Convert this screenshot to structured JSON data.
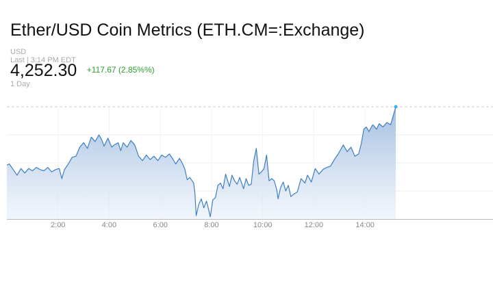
{
  "header": {
    "title": "Ether/USD Coin Metrics (ETH.CM=:Exchange)",
    "currency": "USD",
    "last_time": "Last | 3:14 PM EDT",
    "price": "4,252.30",
    "change": "+117.67 (2.85%%)",
    "range": "1 Day"
  },
  "chart_data": {
    "type": "area",
    "xlabel": "",
    "ylabel": "",
    "x_ticks": [
      {
        "hour": 2,
        "label": "2:00"
      },
      {
        "hour": 4,
        "label": "4:00"
      },
      {
        "hour": 6,
        "label": "6:00"
      },
      {
        "hour": 8,
        "label": "8:00"
      },
      {
        "hour": 10,
        "label": "10:00"
      },
      {
        "hour": 12,
        "label": "12:00"
      },
      {
        "hour": 14,
        "label": "14:00"
      }
    ],
    "xlim": [
      0,
      19
    ],
    "ylim": [
      0,
      100
    ],
    "previous_close_level": 100,
    "series": [
      {
        "points": [
          [
            0.0,
            48
          ],
          [
            0.1,
            49
          ],
          [
            0.25,
            44
          ],
          [
            0.4,
            39
          ],
          [
            0.55,
            45
          ],
          [
            0.7,
            41
          ],
          [
            0.85,
            45
          ],
          [
            1.0,
            43
          ],
          [
            1.15,
            46
          ],
          [
            1.3,
            44
          ],
          [
            1.45,
            43
          ],
          [
            1.6,
            46
          ],
          [
            1.75,
            42
          ],
          [
            1.9,
            44
          ],
          [
            2.05,
            45
          ],
          [
            2.15,
            36
          ],
          [
            2.25,
            44
          ],
          [
            2.4,
            49
          ],
          [
            2.55,
            55
          ],
          [
            2.7,
            56
          ],
          [
            2.85,
            64
          ],
          [
            3.0,
            68
          ],
          [
            3.15,
            63
          ],
          [
            3.3,
            73
          ],
          [
            3.45,
            69
          ],
          [
            3.6,
            75
          ],
          [
            3.7,
            71
          ],
          [
            3.8,
            65
          ],
          [
            3.95,
            72
          ],
          [
            4.1,
            64
          ],
          [
            4.2,
            66
          ],
          [
            4.35,
            68
          ],
          [
            4.45,
            61
          ],
          [
            4.55,
            68
          ],
          [
            4.7,
            64
          ],
          [
            4.85,
            70
          ],
          [
            5.0,
            66
          ],
          [
            5.15,
            56
          ],
          [
            5.3,
            52
          ],
          [
            5.45,
            57
          ],
          [
            5.6,
            53
          ],
          [
            5.75,
            56
          ],
          [
            5.9,
            52
          ],
          [
            6.05,
            57
          ],
          [
            6.2,
            55
          ],
          [
            6.35,
            58
          ],
          [
            6.5,
            53
          ],
          [
            6.6,
            49
          ],
          [
            6.75,
            54
          ],
          [
            6.85,
            50
          ],
          [
            6.95,
            45
          ],
          [
            7.05,
            35
          ],
          [
            7.15,
            37
          ],
          [
            7.3,
            32
          ],
          [
            7.35,
            23
          ],
          [
            7.4,
            3
          ],
          [
            7.5,
            13
          ],
          [
            7.6,
            18
          ],
          [
            7.7,
            10
          ],
          [
            7.8,
            16
          ],
          [
            7.85,
            12
          ],
          [
            7.95,
            2
          ],
          [
            8.05,
            17
          ],
          [
            8.15,
            19
          ],
          [
            8.25,
            30
          ],
          [
            8.35,
            32
          ],
          [
            8.45,
            27
          ],
          [
            8.55,
            40
          ],
          [
            8.7,
            29
          ],
          [
            8.8,
            39
          ],
          [
            8.9,
            34
          ],
          [
            9.0,
            31
          ],
          [
            9.1,
            37
          ],
          [
            9.25,
            27
          ],
          [
            9.35,
            36
          ],
          [
            9.45,
            30
          ],
          [
            9.55,
            31
          ],
          [
            9.65,
            52
          ],
          [
            9.75,
            63
          ],
          [
            9.85,
            40
          ],
          [
            9.95,
            42
          ],
          [
            10.05,
            45
          ],
          [
            10.15,
            57
          ],
          [
            10.25,
            34
          ],
          [
            10.35,
            36
          ],
          [
            10.45,
            34
          ],
          [
            10.55,
            26
          ],
          [
            10.6,
            18
          ],
          [
            10.7,
            28
          ],
          [
            10.8,
            33
          ],
          [
            10.9,
            25
          ],
          [
            11.0,
            30
          ],
          [
            11.1,
            20
          ],
          [
            11.2,
            22
          ],
          [
            11.35,
            24
          ],
          [
            11.5,
            36
          ],
          [
            11.65,
            32
          ],
          [
            11.75,
            39
          ],
          [
            11.9,
            33
          ],
          [
            12.05,
            45
          ],
          [
            12.2,
            40
          ],
          [
            12.35,
            44
          ],
          [
            12.5,
            46
          ],
          [
            12.65,
            47
          ],
          [
            12.8,
            53
          ],
          [
            12.95,
            58
          ],
          [
            13.05,
            62
          ],
          [
            13.15,
            66
          ],
          [
            13.3,
            60
          ],
          [
            13.45,
            64
          ],
          [
            13.6,
            56
          ],
          [
            13.75,
            58
          ],
          [
            13.85,
            67
          ],
          [
            13.95,
            80
          ],
          [
            14.05,
            82
          ],
          [
            14.15,
            78
          ],
          [
            14.3,
            84
          ],
          [
            14.45,
            80
          ],
          [
            14.55,
            85
          ],
          [
            14.7,
            82
          ],
          [
            14.85,
            86
          ],
          [
            15.0,
            84
          ],
          [
            15.1,
            92
          ],
          [
            15.2,
            100
          ]
        ]
      }
    ]
  }
}
